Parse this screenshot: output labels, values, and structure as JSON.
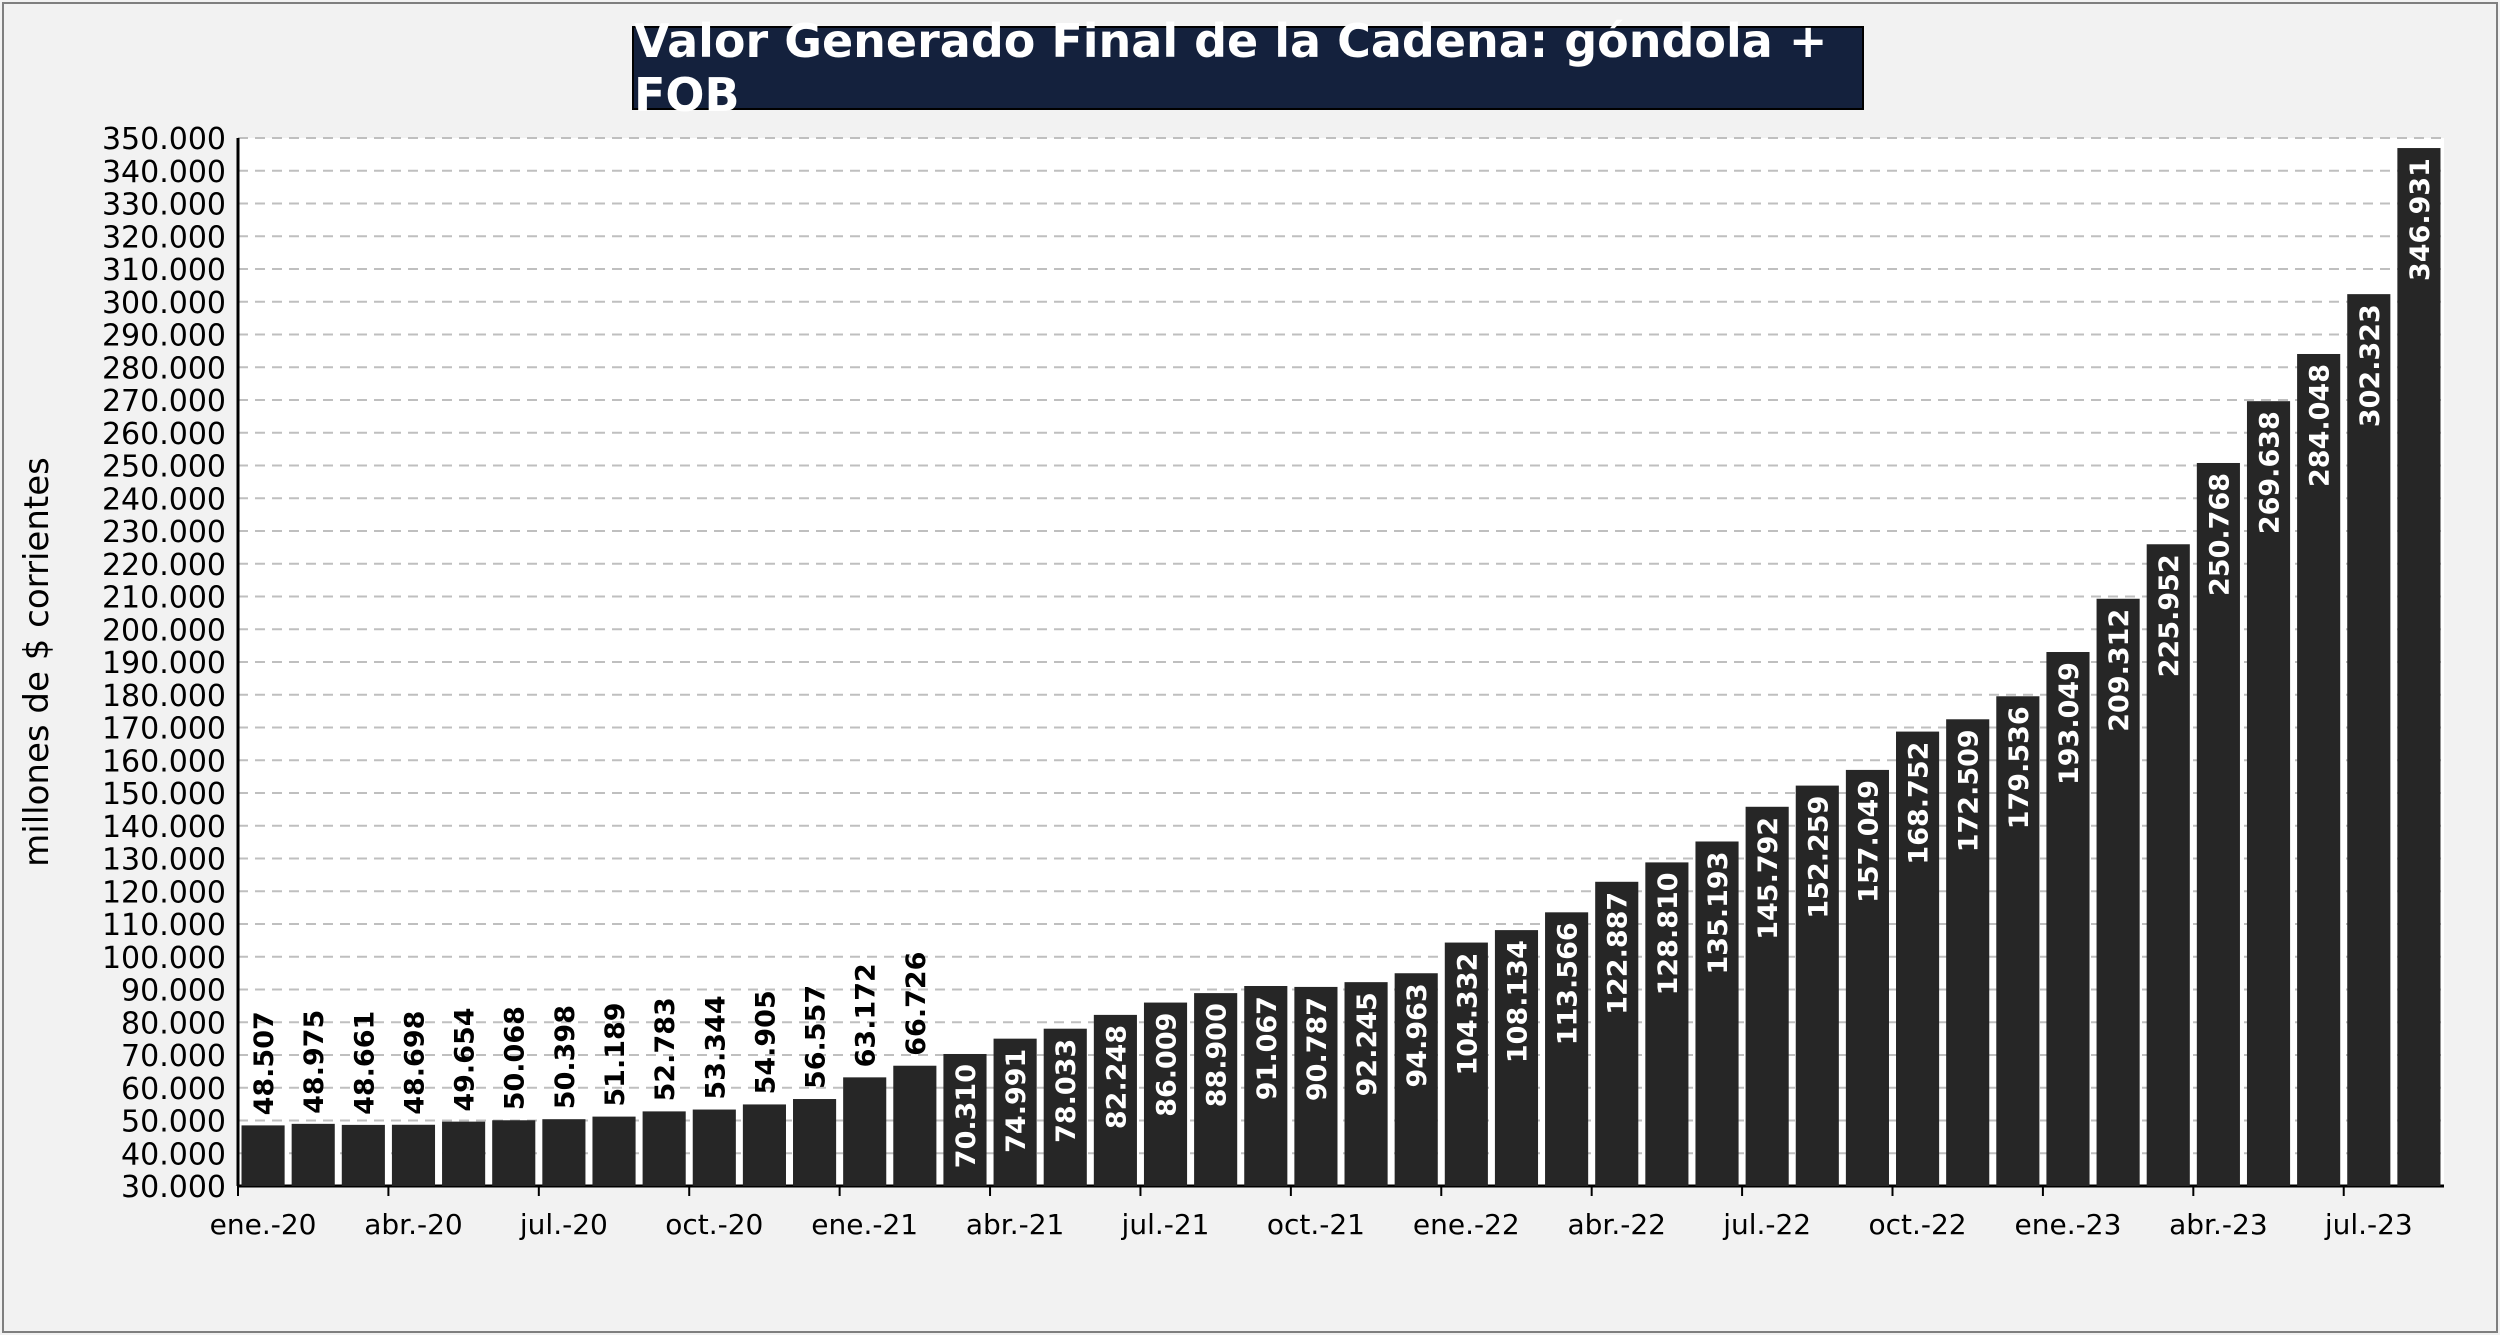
{
  "chart_data": {
    "type": "bar",
    "title": "Valor Generado Final de la Cadena: góndola + FOB",
    "ylabel": "millones de $ corrientes",
    "xlabel": "",
    "ylim": [
      30000,
      350000
    ],
    "y_tick_step": 10000,
    "grid": true,
    "legend": "none",
    "colors": {
      "bar": "#262626",
      "label": "#ffffff",
      "label_outside": "#000000",
      "grid": "#bfbfbf",
      "title_bg": "#14213d"
    },
    "x_tick_labels": [
      "ene.-20",
      "abr.-20",
      "jul.-20",
      "oct.-20",
      "ene.-21",
      "abr.-21",
      "jul.-21",
      "oct.-21",
      "ene.-22",
      "abr.-22",
      "jul.-22",
      "oct.-22",
      "ene.-23",
      "abr.-23",
      "jul.-23"
    ],
    "categories": [
      "ene.-20",
      "feb.-20",
      "mar.-20",
      "abr.-20",
      "may.-20",
      "jun.-20",
      "jul.-20",
      "ago.-20",
      "sep.-20",
      "oct.-20",
      "nov.-20",
      "dic.-20",
      "ene.-21",
      "feb.-21",
      "mar.-21",
      "abr.-21",
      "may.-21",
      "jun.-21",
      "jul.-21",
      "ago.-21",
      "sep.-21",
      "oct.-21",
      "nov.-21",
      "dic.-21",
      "ene.-22",
      "feb.-22",
      "mar.-22",
      "abr.-22",
      "may.-22",
      "jun.-22",
      "jul.-22",
      "ago.-22",
      "sep.-22",
      "oct.-22",
      "nov.-22",
      "dic.-22",
      "ene.-23",
      "feb.-23",
      "mar.-23",
      "abr.-23",
      "may.-23",
      "jun.-23",
      "jul.-23",
      "ago.-23"
    ],
    "values": [
      48507,
      48975,
      48661,
      48698,
      49654,
      50068,
      50398,
      51189,
      52783,
      53344,
      54905,
      56557,
      63172,
      66726,
      70310,
      74991,
      78033,
      82248,
      86009,
      88900,
      91067,
      90787,
      92245,
      94963,
      104332,
      108134,
      113566,
      122887,
      128810,
      135193,
      145792,
      152259,
      157049,
      168752,
      172509,
      179536,
      193049,
      209312,
      225952,
      250768,
      269638,
      284048,
      302323,
      346931
    ],
    "data_labels": [
      "48.507",
      "48.975",
      "48.661",
      "48.698",
      "49.654",
      "50.068",
      "50.398",
      "51.189",
      "52.783",
      "53.344",
      "54.905",
      "56.557",
      "63.172",
      "66.726",
      "70.310",
      "74.991",
      "78.033",
      "82.248",
      "86.009",
      "88.900",
      "91.067",
      "90.787",
      "92.245",
      "94.963",
      "104.332",
      "108.134",
      "113.566",
      "122.887",
      "128.810",
      "135.193",
      "145.792",
      "152.259",
      "157.049",
      "168.752",
      "172.509",
      "179.536",
      "193.049",
      "209.312",
      "225.952",
      "250.768",
      "269.638",
      "284.048",
      "302.323",
      "346.931"
    ]
  }
}
